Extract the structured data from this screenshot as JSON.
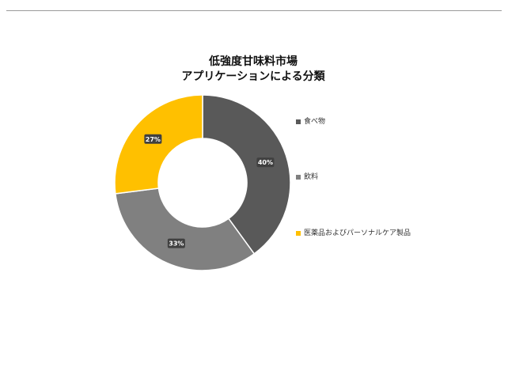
{
  "chart_data": {
    "type": "donut",
    "title": "低強度甘味料市場",
    "subtitle": "アプリケーションによる分類",
    "categories": [
      "食べ物",
      "飲料",
      "医薬品およびパーソナルケア製品"
    ],
    "values": [
      40,
      33,
      27
    ],
    "data_labels": [
      "40%",
      "33%",
      "27%"
    ],
    "colors": [
      "#595959",
      "#808080",
      "#ffc000"
    ],
    "legend_position": "right"
  }
}
